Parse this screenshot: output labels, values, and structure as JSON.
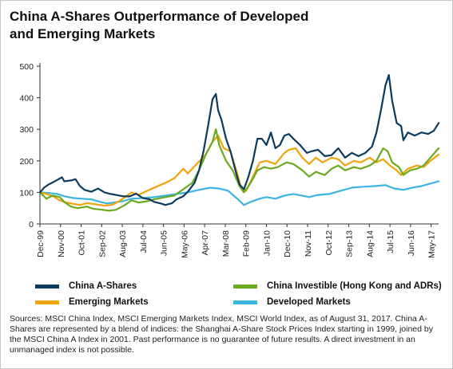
{
  "title": "China A-Shares Outperformance of Developed and Emerging Markets",
  "source_note": "Sources: MSCI China Index, MSCI Emerging Markets Index, MSCI World Index, as of August 31, 2017. China A-Shares are represented by a blend of indices: the Shanghai A-Share Stock Prices Index starting in 1999, joined by the MSCI China A Index in 2001. Past performance is no guarantee of future results. A direct investment in an unmanaged index is not possible.",
  "chart_data": {
    "type": "line",
    "title": "China A-Shares Outperformance of Developed and Emerging Markets",
    "xlabel": "",
    "ylabel": "",
    "ylim": [
      0,
      500
    ],
    "yticks": [
      0,
      100,
      200,
      300,
      400,
      500
    ],
    "xlim": [
      1999.917,
      2017.667
    ],
    "xtick_labels": [
      "Dec-99",
      "Nov-00",
      "Oct-01",
      "Sep-02",
      "Aug-03",
      "Jul-04",
      "Jun-05",
      "May-06",
      "Apr-07",
      "Mar-08",
      "Feb-09",
      "Jan-10",
      "Dec-10",
      "Nov-11",
      "Oct-12",
      "Sep-13",
      "Aug-14",
      "Jul-15",
      "Jun-16",
      "May-17"
    ],
    "xtick_values": [
      1999.917,
      2000.833,
      2001.75,
      2002.667,
      2003.583,
      2004.5,
      2005.417,
      2006.333,
      2007.25,
      2008.167,
      2009.083,
      2010.0,
      2010.917,
      2011.833,
      2012.75,
      2013.667,
      2014.583,
      2015.5,
      2016.417,
      2017.333
    ],
    "grid": false,
    "legend_position": "bottom",
    "series": [
      {
        "name": "China A-Shares",
        "color": "#0b3a5c",
        "points": [
          [
            1999.92,
            100
          ],
          [
            2000.1,
            115
          ],
          [
            2000.3,
            125
          ],
          [
            2000.5,
            132
          ],
          [
            2000.7,
            140
          ],
          [
            2000.9,
            148
          ],
          [
            2001.0,
            135
          ],
          [
            2001.3,
            138
          ],
          [
            2001.5,
            142
          ],
          [
            2001.7,
            120
          ],
          [
            2001.9,
            108
          ],
          [
            2002.2,
            102
          ],
          [
            2002.5,
            112
          ],
          [
            2002.8,
            100
          ],
          [
            2003.0,
            96
          ],
          [
            2003.3,
            92
          ],
          [
            2003.6,
            88
          ],
          [
            2003.9,
            87
          ],
          [
            2004.2,
            96
          ],
          [
            2004.5,
            82
          ],
          [
            2004.8,
            78
          ],
          [
            2005.0,
            70
          ],
          [
            2005.3,
            65
          ],
          [
            2005.5,
            60
          ],
          [
            2005.8,
            66
          ],
          [
            2006.0,
            78
          ],
          [
            2006.3,
            88
          ],
          [
            2006.5,
            102
          ],
          [
            2006.8,
            130
          ],
          [
            2007.0,
            170
          ],
          [
            2007.2,
            230
          ],
          [
            2007.4,
            310
          ],
          [
            2007.6,
            395
          ],
          [
            2007.75,
            412
          ],
          [
            2007.85,
            360
          ],
          [
            2008.0,
            330
          ],
          [
            2008.2,
            270
          ],
          [
            2008.4,
            230
          ],
          [
            2008.6,
            175
          ],
          [
            2008.8,
            125
          ],
          [
            2009.0,
            110
          ],
          [
            2009.2,
            150
          ],
          [
            2009.4,
            200
          ],
          [
            2009.6,
            270
          ],
          [
            2009.8,
            270
          ],
          [
            2010.0,
            250
          ],
          [
            2010.2,
            290
          ],
          [
            2010.4,
            240
          ],
          [
            2010.6,
            250
          ],
          [
            2010.8,
            280
          ],
          [
            2011.0,
            285
          ],
          [
            2011.2,
            270
          ],
          [
            2011.5,
            250
          ],
          [
            2011.8,
            225
          ],
          [
            2012.0,
            230
          ],
          [
            2012.3,
            235
          ],
          [
            2012.6,
            215
          ],
          [
            2012.9,
            218
          ],
          [
            2013.2,
            240
          ],
          [
            2013.5,
            210
          ],
          [
            2013.8,
            225
          ],
          [
            2014.1,
            215
          ],
          [
            2014.4,
            225
          ],
          [
            2014.7,
            245
          ],
          [
            2014.9,
            290
          ],
          [
            2015.1,
            360
          ],
          [
            2015.3,
            440
          ],
          [
            2015.45,
            472
          ],
          [
            2015.6,
            390
          ],
          [
            2015.8,
            320
          ],
          [
            2016.0,
            310
          ],
          [
            2016.1,
            265
          ],
          [
            2016.3,
            290
          ],
          [
            2016.6,
            280
          ],
          [
            2016.9,
            290
          ],
          [
            2017.2,
            285
          ],
          [
            2017.45,
            295
          ],
          [
            2017.67,
            320
          ]
        ]
      },
      {
        "name": "China Investible (Hong Kong and ADRs)",
        "color": "#6aaa1e",
        "points": [
          [
            1999.92,
            100
          ],
          [
            2000.2,
            80
          ],
          [
            2000.5,
            90
          ],
          [
            2000.8,
            85
          ],
          [
            2001.0,
            70
          ],
          [
            2001.3,
            55
          ],
          [
            2001.6,
            50
          ],
          [
            2002.0,
            55
          ],
          [
            2002.3,
            48
          ],
          [
            2002.7,
            45
          ],
          [
            2003.0,
            42
          ],
          [
            2003.3,
            45
          ],
          [
            2003.7,
            60
          ],
          [
            2004.0,
            75
          ],
          [
            2004.3,
            68
          ],
          [
            2004.7,
            72
          ],
          [
            2005.0,
            78
          ],
          [
            2005.5,
            85
          ],
          [
            2005.9,
            90
          ],
          [
            2006.3,
            110
          ],
          [
            2006.7,
            130
          ],
          [
            2007.0,
            170
          ],
          [
            2007.3,
            220
          ],
          [
            2007.6,
            260
          ],
          [
            2007.75,
            300
          ],
          [
            2007.9,
            250
          ],
          [
            2008.2,
            200
          ],
          [
            2008.5,
            170
          ],
          [
            2008.8,
            120
          ],
          [
            2009.0,
            100
          ],
          [
            2009.3,
            130
          ],
          [
            2009.6,
            170
          ],
          [
            2009.9,
            180
          ],
          [
            2010.2,
            175
          ],
          [
            2010.5,
            180
          ],
          [
            2010.9,
            195
          ],
          [
            2011.2,
            190
          ],
          [
            2011.6,
            170
          ],
          [
            2011.9,
            150
          ],
          [
            2012.2,
            165
          ],
          [
            2012.6,
            155
          ],
          [
            2012.9,
            175
          ],
          [
            2013.2,
            185
          ],
          [
            2013.5,
            170
          ],
          [
            2013.9,
            180
          ],
          [
            2014.2,
            175
          ],
          [
            2014.6,
            185
          ],
          [
            2014.9,
            200
          ],
          [
            2015.2,
            240
          ],
          [
            2015.4,
            230
          ],
          [
            2015.6,
            195
          ],
          [
            2015.9,
            180
          ],
          [
            2016.1,
            155
          ],
          [
            2016.4,
            170
          ],
          [
            2016.7,
            175
          ],
          [
            2017.0,
            185
          ],
          [
            2017.3,
            210
          ],
          [
            2017.67,
            240
          ]
        ]
      },
      {
        "name": "Emerging Markets",
        "color": "#f0a30a",
        "points": [
          [
            1999.92,
            100
          ],
          [
            2000.2,
            95
          ],
          [
            2000.5,
            88
          ],
          [
            2000.8,
            75
          ],
          [
            2001.0,
            70
          ],
          [
            2001.3,
            65
          ],
          [
            2001.7,
            60
          ],
          [
            2002.0,
            66
          ],
          [
            2002.4,
            62
          ],
          [
            2002.8,
            58
          ],
          [
            2003.1,
            60
          ],
          [
            2003.4,
            70
          ],
          [
            2003.7,
            85
          ],
          [
            2004.0,
            100
          ],
          [
            2004.3,
            92
          ],
          [
            2004.7,
            105
          ],
          [
            2005.0,
            115
          ],
          [
            2005.5,
            130
          ],
          [
            2005.9,
            145
          ],
          [
            2006.3,
            175
          ],
          [
            2006.5,
            160
          ],
          [
            2006.9,
            190
          ],
          [
            2007.3,
            220
          ],
          [
            2007.6,
            260
          ],
          [
            2007.85,
            280
          ],
          [
            2008.1,
            240
          ],
          [
            2008.4,
            230
          ],
          [
            2008.7,
            160
          ],
          [
            2008.9,
            110
          ],
          [
            2009.1,
            105
          ],
          [
            2009.4,
            150
          ],
          [
            2009.7,
            195
          ],
          [
            2010.0,
            200
          ],
          [
            2010.4,
            190
          ],
          [
            2010.8,
            225
          ],
          [
            2011.0,
            235
          ],
          [
            2011.3,
            240
          ],
          [
            2011.6,
            210
          ],
          [
            2011.9,
            190
          ],
          [
            2012.2,
            210
          ],
          [
            2012.5,
            195
          ],
          [
            2012.9,
            210
          ],
          [
            2013.2,
            205
          ],
          [
            2013.5,
            185
          ],
          [
            2013.9,
            200
          ],
          [
            2014.2,
            195
          ],
          [
            2014.6,
            210
          ],
          [
            2014.9,
            195
          ],
          [
            2015.2,
            205
          ],
          [
            2015.5,
            185
          ],
          [
            2015.8,
            170
          ],
          [
            2016.0,
            155
          ],
          [
            2016.3,
            175
          ],
          [
            2016.7,
            185
          ],
          [
            2017.0,
            180
          ],
          [
            2017.3,
            200
          ],
          [
            2017.67,
            220
          ]
        ]
      },
      {
        "name": "Developed Markets",
        "color": "#3cb4e0",
        "points": [
          [
            1999.92,
            100
          ],
          [
            2000.3,
            98
          ],
          [
            2000.7,
            95
          ],
          [
            2001.0,
            88
          ],
          [
            2001.4,
            82
          ],
          [
            2001.8,
            80
          ],
          [
            2002.2,
            78
          ],
          [
            2002.6,
            70
          ],
          [
            2002.9,
            65
          ],
          [
            2003.2,
            68
          ],
          [
            2003.6,
            72
          ],
          [
            2004.0,
            80
          ],
          [
            2004.5,
            82
          ],
          [
            2005.0,
            85
          ],
          [
            2005.5,
            90
          ],
          [
            2006.0,
            95
          ],
          [
            2006.5,
            100
          ],
          [
            2007.0,
            108
          ],
          [
            2007.5,
            115
          ],
          [
            2007.9,
            112
          ],
          [
            2008.3,
            105
          ],
          [
            2008.7,
            80
          ],
          [
            2009.0,
            60
          ],
          [
            2009.3,
            70
          ],
          [
            2009.7,
            80
          ],
          [
            2010.0,
            85
          ],
          [
            2010.4,
            80
          ],
          [
            2010.8,
            90
          ],
          [
            2011.2,
            95
          ],
          [
            2011.6,
            90
          ],
          [
            2011.9,
            85
          ],
          [
            2012.3,
            92
          ],
          [
            2012.8,
            95
          ],
          [
            2013.3,
            105
          ],
          [
            2013.8,
            115
          ],
          [
            2014.3,
            118
          ],
          [
            2014.8,
            120
          ],
          [
            2015.3,
            123
          ],
          [
            2015.7,
            112
          ],
          [
            2016.1,
            108
          ],
          [
            2016.5,
            115
          ],
          [
            2016.9,
            120
          ],
          [
            2017.3,
            128
          ],
          [
            2017.67,
            135
          ]
        ]
      }
    ]
  }
}
